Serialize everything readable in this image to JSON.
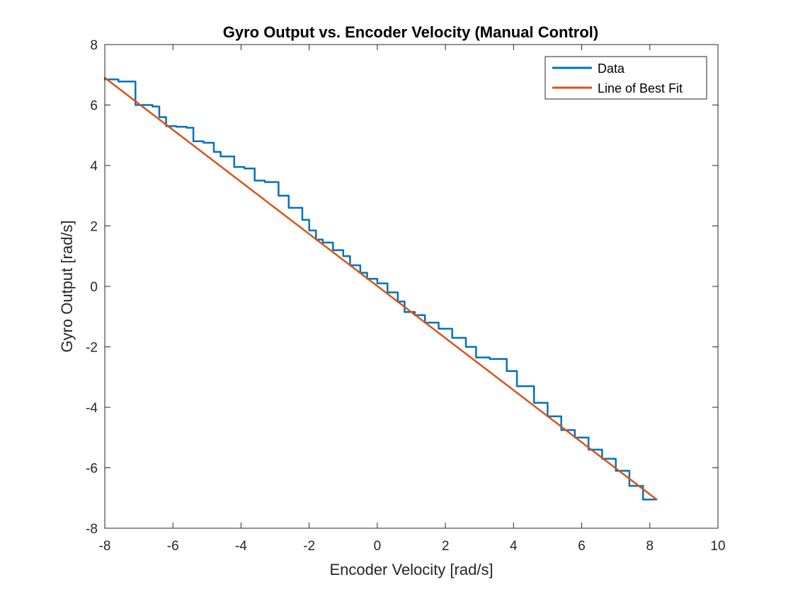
{
  "chart_data": {
    "type": "line",
    "title": "Gyro Output vs. Encoder Velocity (Manual Control)",
    "xlabel": "Encoder Velocity [rad/s]",
    "ylabel": "Gyro Output [rad/s]",
    "xlim": [
      -8,
      10
    ],
    "ylim": [
      -8,
      8
    ],
    "xticks": [
      "-8",
      "-6",
      "-4",
      "-2",
      "0",
      "2",
      "4",
      "6",
      "8",
      "10"
    ],
    "yticks": [
      "8",
      "6",
      "4",
      "2",
      "0",
      "-2",
      "-4",
      "-6",
      "-8"
    ],
    "grid": false,
    "legend_position": "top-right",
    "colors": {
      "data": "#0072BD",
      "fit": "#D95319"
    },
    "series": [
      {
        "name": "Data",
        "style": "staircase",
        "x": [
          -8.0,
          -7.8,
          -7.6,
          -7.2,
          -7.1,
          -6.9,
          -6.6,
          -6.4,
          -6.2,
          -5.9,
          -5.6,
          -5.4,
          -5.1,
          -4.8,
          -4.6,
          -4.2,
          -3.9,
          -3.6,
          -3.3,
          -2.9,
          -2.6,
          -2.2,
          -2.0,
          -1.8,
          -1.6,
          -1.3,
          -1.0,
          -0.8,
          -0.5,
          -0.3,
          0.0,
          0.3,
          0.6,
          0.8,
          1.1,
          1.4,
          1.8,
          2.2,
          2.6,
          2.9,
          3.3,
          3.8,
          4.1,
          4.6,
          5.0,
          5.4,
          5.8,
          6.2,
          6.6,
          7.0,
          7.4,
          7.8,
          8.2
        ],
        "y": [
          6.85,
          6.85,
          6.78,
          6.78,
          6.0,
          6.0,
          5.95,
          5.6,
          5.3,
          5.28,
          5.25,
          4.8,
          4.75,
          4.45,
          4.3,
          3.95,
          3.9,
          3.5,
          3.45,
          3.0,
          2.6,
          2.2,
          1.85,
          1.55,
          1.45,
          1.2,
          1.0,
          0.7,
          0.45,
          0.25,
          0.1,
          -0.2,
          -0.5,
          -0.85,
          -0.95,
          -1.2,
          -1.4,
          -1.7,
          -2.0,
          -2.35,
          -2.4,
          -2.8,
          -3.3,
          -3.85,
          -4.3,
          -4.75,
          -5.0,
          -5.4,
          -5.7,
          -6.1,
          -6.6,
          -7.05,
          -7.05
        ]
      },
      {
        "name": "Line of Best Fit",
        "style": "line",
        "x": [
          -8.0,
          8.2
        ],
        "y": [
          6.9,
          -7.05
        ]
      }
    ]
  }
}
